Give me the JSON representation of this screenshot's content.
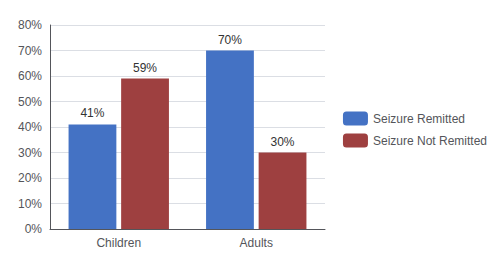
{
  "chart_data": {
    "type": "bar",
    "categories": [
      "Children",
      "Adults"
    ],
    "series": [
      {
        "name": "Seizure Remitted",
        "color": "#4472C4",
        "values": [
          41,
          70
        ],
        "value_labels": [
          "41%",
          "70%"
        ]
      },
      {
        "name": "Seizure Not Remitted",
        "color": "#9E4040",
        "values": [
          59,
          30
        ],
        "value_labels": [
          "59%",
          "30%"
        ]
      }
    ],
    "ylim": [
      0,
      80
    ],
    "yticks": [
      {
        "value": 0,
        "label": "0%"
      },
      {
        "value": 10,
        "label": "10%"
      },
      {
        "value": 20,
        "label": "20%"
      },
      {
        "value": 30,
        "label": "30%"
      },
      {
        "value": 40,
        "label": "40%"
      },
      {
        "value": 50,
        "label": "50%"
      },
      {
        "value": 60,
        "label": "60%"
      },
      {
        "value": 70,
        "label": "70%"
      },
      {
        "value": 80,
        "label": "80%"
      }
    ],
    "grid": true,
    "legend": "right",
    "data_labels": true
  }
}
